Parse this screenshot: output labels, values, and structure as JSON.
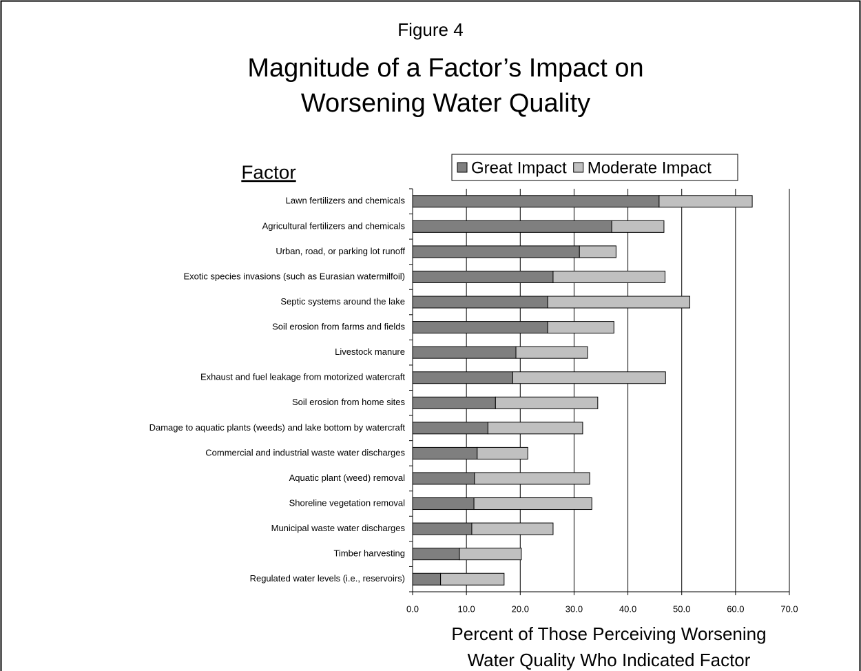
{
  "chart_data": {
    "type": "stacked-barh",
    "supertitle": "Figure 4",
    "title": [
      "Magnitude of a Factor’s Impact on",
      "Worsening Water Quality"
    ],
    "ylabel": "Factor",
    "xlabel": [
      "Percent of Those Perceiving Worsening",
      "Water Quality Who Indicated Factor"
    ],
    "categories": [
      "Lawn fertilizers and chemicals",
      "Agricultural fertilizers and chemicals",
      "Urban, road, or parking lot runoff",
      "Exotic species invasions (such as Eurasian watermilfoil)",
      "Septic systems around the lake",
      "Soil erosion from farms and fields",
      "Livestock manure",
      "Exhaust and fuel leakage from motorized watercraft",
      "Soil erosion from home sites",
      "Damage to aquatic plants (weeds) and lake bottom by watercraft",
      "Commercial and industrial waste water discharges",
      "Aquatic plant (weed) removal",
      "Shoreline vegetation removal",
      "Municipal waste water discharges",
      "Timber harvesting",
      "Regulated water levels (i.e., reservoirs)"
    ],
    "series": [
      {
        "name": "Great Impact",
        "color": "#7f7f7f",
        "values": [
          45.8,
          37.0,
          31.0,
          26.1,
          25.1,
          25.1,
          19.2,
          18.6,
          15.4,
          14.0,
          12.0,
          11.5,
          11.4,
          11.0,
          8.7,
          5.2
        ]
      },
      {
        "name": "Moderate Impact",
        "color": "#c0c0c0",
        "values": [
          17.3,
          9.7,
          6.8,
          20.8,
          26.4,
          12.3,
          13.3,
          28.4,
          19.0,
          17.6,
          9.4,
          21.4,
          21.9,
          15.1,
          11.5,
          11.8
        ]
      }
    ],
    "xlim": [
      0,
      70
    ],
    "xticks": [
      {
        "value": 0,
        "label": "0.0"
      },
      {
        "value": 10,
        "label": "10.0"
      },
      {
        "value": 20,
        "label": "20.0"
      },
      {
        "value": 30,
        "label": "30.0"
      },
      {
        "value": 40,
        "label": "40.0"
      },
      {
        "value": 50,
        "label": "50.0"
      },
      {
        "value": 60,
        "label": "60.0"
      },
      {
        "value": 70,
        "label": "70.0"
      }
    ],
    "grid": true
  }
}
